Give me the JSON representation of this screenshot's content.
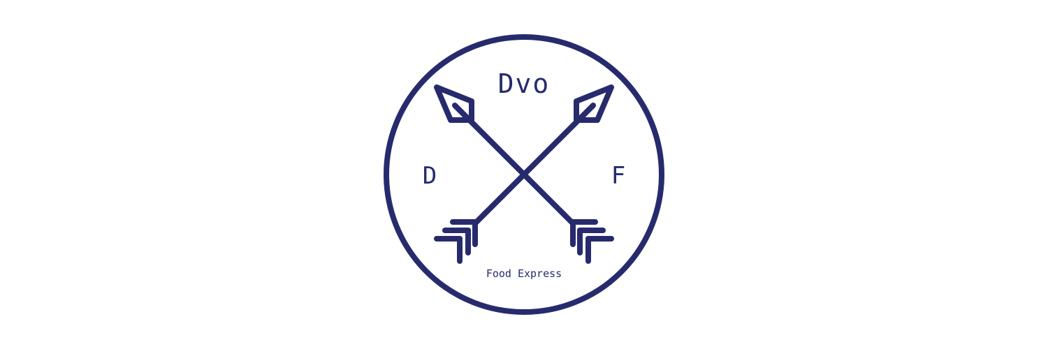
{
  "logo": {
    "title": "Dvo",
    "left_letter": "D",
    "right_letter": "F",
    "tagline": "Food Express",
    "color": "#272b6d",
    "background": "#ffffff"
  }
}
